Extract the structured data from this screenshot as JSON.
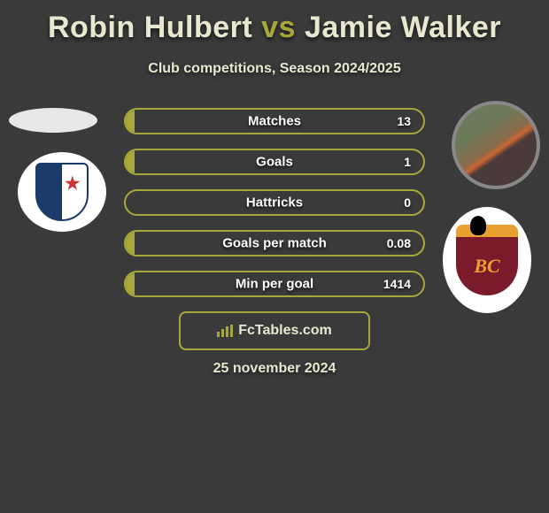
{
  "title": {
    "player1": "Robin Hulbert",
    "vs": "vs",
    "player2": "Jamie Walker"
  },
  "subtitle": "Club competitions, Season 2024/2025",
  "colors": {
    "accent": "#a8a83a",
    "background": "#3a3a3a",
    "text": "#e8e8d0",
    "badge_left_primary": "#1a3a6a",
    "badge_right_primary": "#7a1a2a",
    "badge_right_accent": "#e8a030"
  },
  "bars": [
    {
      "label": "Matches",
      "value": "13",
      "fill_pct": 3
    },
    {
      "label": "Goals",
      "value": "1",
      "fill_pct": 3
    },
    {
      "label": "Hattricks",
      "value": "0",
      "fill_pct": 0
    },
    {
      "label": "Goals per match",
      "value": "0.08",
      "fill_pct": 3
    },
    {
      "label": "Min per goal",
      "value": "1414",
      "fill_pct": 3
    }
  ],
  "footer": {
    "brand": "FcTables.com"
  },
  "date": "25 november 2024"
}
